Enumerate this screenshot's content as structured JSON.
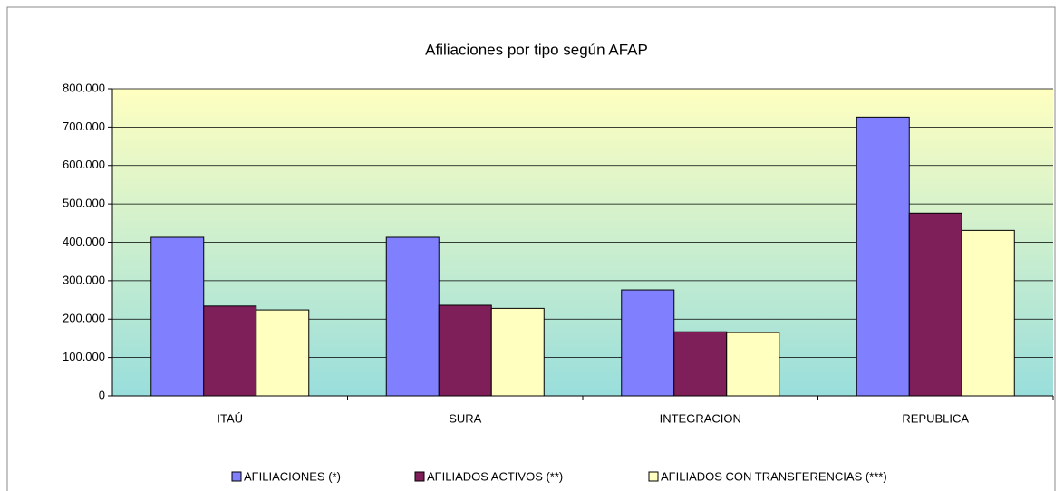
{
  "chart_data": {
    "type": "bar",
    "title": "Afiliaciones por tipo según AFAP",
    "categories": [
      "ITAÚ",
      "SURA",
      "INTEGRACION",
      "REPUBLICA"
    ],
    "series": [
      {
        "name": "AFILIACIONES (*)",
        "color": "#8080ff",
        "values": [
          413000,
          413000,
          276000,
          726000
        ]
      },
      {
        "name": "AFILIADOS ACTIVOS (**)",
        "color": "#7f1f5a",
        "values": [
          234000,
          236000,
          167000,
          476000
        ]
      },
      {
        "name": "AFILIADOS CON TRANSFERENCIAS (***)",
        "color": "#ffffc0",
        "values": [
          224000,
          228000,
          165000,
          431000
        ]
      }
    ],
    "ylim": [
      0,
      800000
    ],
    "yticks": [
      0,
      {
        "value": 100000,
        "label": "100.000"
      },
      {
        "value": 200000,
        "label": "200.000"
      },
      {
        "value": 300000,
        "label": "300.000"
      },
      {
        "value": 400000,
        "label": "400.000"
      },
      {
        "value": 500000,
        "label": "500.000"
      },
      {
        "value": 600000,
        "label": "600.000"
      },
      {
        "value": 700000,
        "label": "700.000"
      },
      {
        "value": 800000,
        "label": "800.000"
      }
    ],
    "grid": true,
    "legend": "bottom"
  }
}
